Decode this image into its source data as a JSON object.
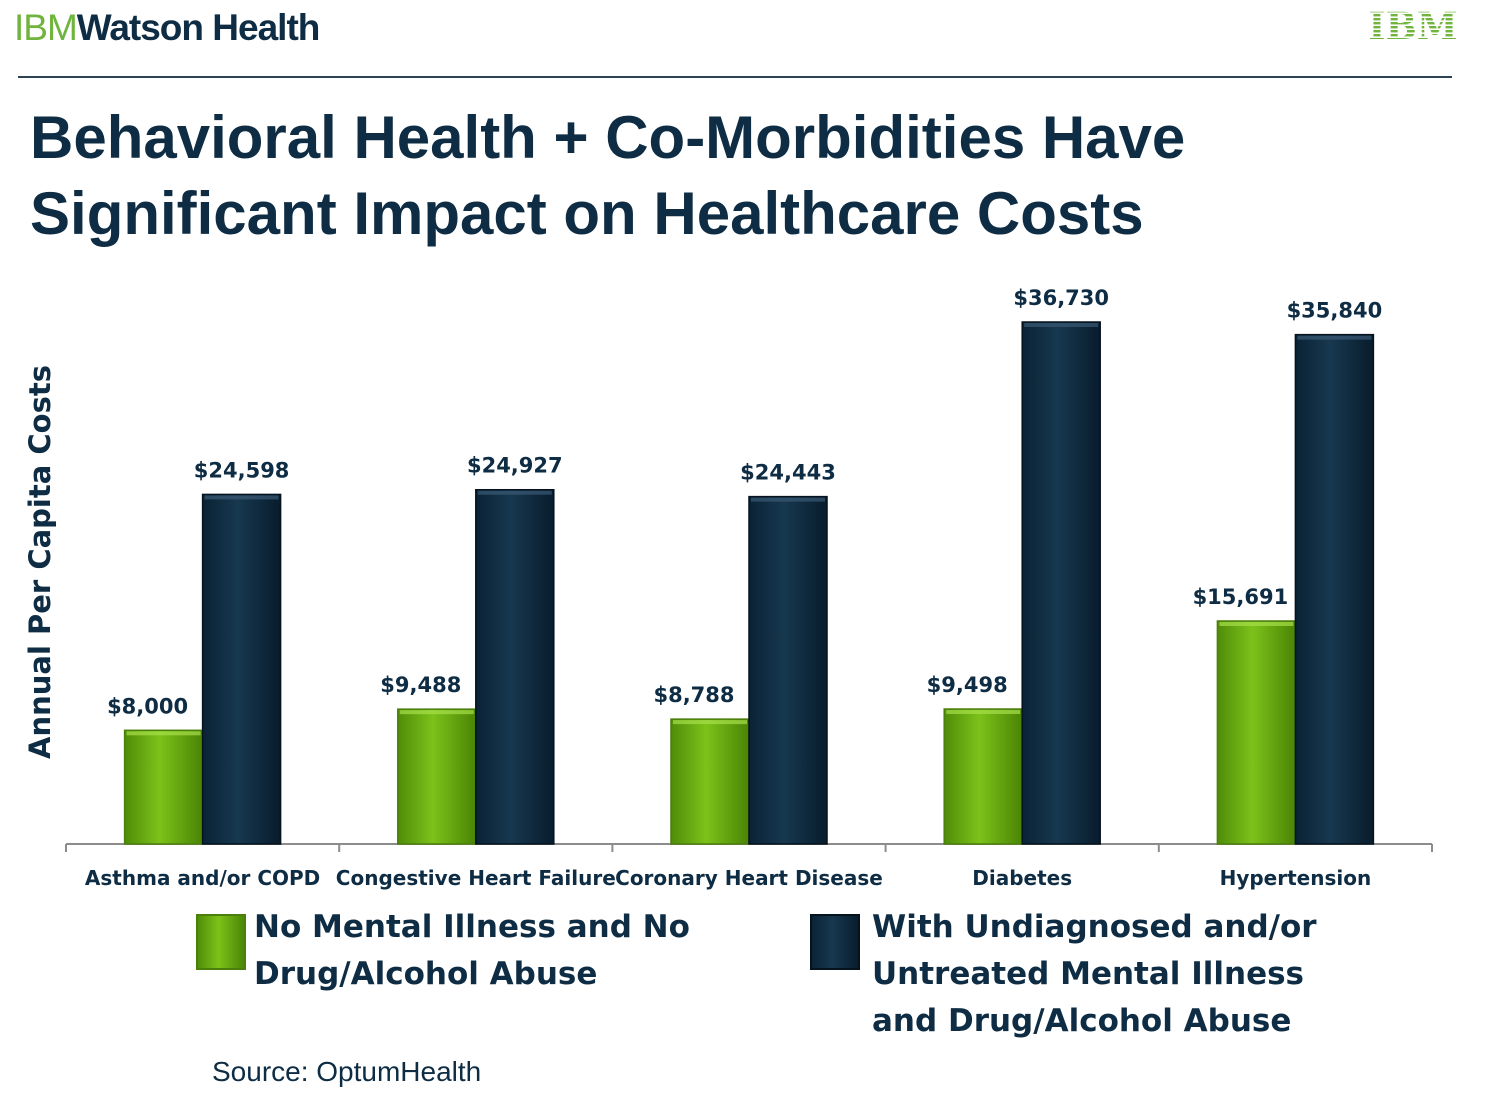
{
  "header": {
    "brand_part1": "IBM",
    "brand_part2": "Watson Health",
    "logo_text": "IBM"
  },
  "title_lines": [
    "Behavioral Health + Co-Morbidities Have",
    "Significant Impact on Healthcare Costs"
  ],
  "source": "Source: OptumHealth",
  "colors": {
    "green": "#6fb312",
    "navy": "#0d2c42",
    "title": "#0e2c43"
  },
  "chart_data": {
    "type": "bar",
    "ylabel": "Annual Per Capita Costs",
    "categories": [
      "Asthma and/or COPD",
      "Congestive Heart Failure",
      "Coronary Heart Disease",
      "Diabetes",
      "Hypertension"
    ],
    "series": [
      {
        "name": "No Mental Illness and No Drug/Alcohol Abuse",
        "name_lines": [
          "No Mental Illness and No",
          "Drug/Alcohol Abuse"
        ],
        "values": [
          8000,
          9488,
          8788,
          9498,
          15691
        ],
        "labels": [
          "$8,000",
          "$9,488",
          "$8,788",
          "$9,498",
          "$15,691"
        ],
        "color": "#6fb312"
      },
      {
        "name": "With Undiagnosed and/or Untreated Mental Illness and Drug/Alcohol Abuse",
        "name_lines": [
          "With Undiagnosed  and/or",
          "Untreated  Mental Illness",
          "and Drug/Alcohol Abuse"
        ],
        "values": [
          24598,
          24927,
          24443,
          36730,
          35840
        ],
        "labels": [
          "$24,598",
          "$24,927",
          "$24,443",
          "$36,730",
          "$35,840"
        ],
        "color": "#0d2c42"
      }
    ],
    "ylim": [
      0,
      40000
    ],
    "grid": false,
    "legend_position": "bottom"
  }
}
